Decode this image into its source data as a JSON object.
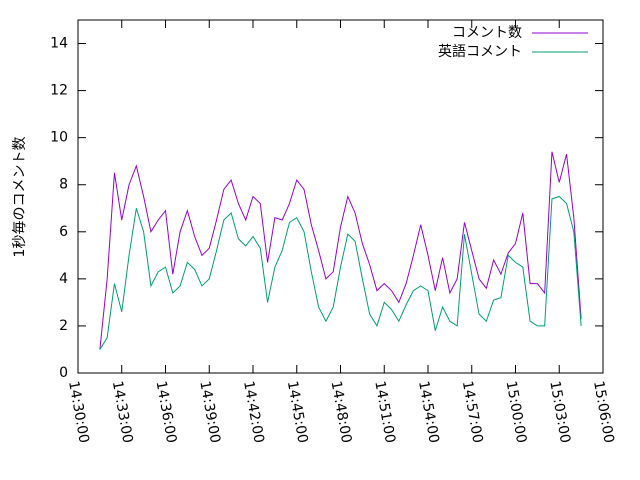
{
  "chart_data": {
    "type": "line",
    "ylabel": "1秒毎のコメント数",
    "x": [
      "14:31:30",
      "14:32:00",
      "14:32:30",
      "14:33:00",
      "14:33:30",
      "14:34:00",
      "14:34:30",
      "14:35:00",
      "14:35:30",
      "14:36:00",
      "14:36:30",
      "14:37:00",
      "14:37:30",
      "14:38:00",
      "14:38:30",
      "14:39:00",
      "14:39:30",
      "14:40:00",
      "14:40:30",
      "14:41:00",
      "14:41:30",
      "14:42:00",
      "14:42:30",
      "14:43:00",
      "14:43:30",
      "14:44:00",
      "14:44:30",
      "14:45:00",
      "14:45:30",
      "14:46:00",
      "14:46:30",
      "14:47:00",
      "14:47:30",
      "14:48:00",
      "14:48:30",
      "14:49:00",
      "14:49:30",
      "14:50:00",
      "14:50:30",
      "14:51:00",
      "14:51:30",
      "14:52:00",
      "14:52:30",
      "14:53:00",
      "14:53:30",
      "14:54:00",
      "14:54:30",
      "14:55:00",
      "14:55:30",
      "14:56:00",
      "14:56:30",
      "14:57:00",
      "14:57:30",
      "14:58:00",
      "14:58:30",
      "14:59:00",
      "14:59:30",
      "15:00:00",
      "15:00:30",
      "15:01:00",
      "15:01:30",
      "15:02:00",
      "15:02:30",
      "15:03:00",
      "15:03:30",
      "15:04:00",
      "15:04:30"
    ],
    "series": [
      {
        "name": "コメント数",
        "color": "#9400d3",
        "values": [
          1.0,
          4,
          8.5,
          6.5,
          8.0,
          8.8,
          7.5,
          6.0,
          6.5,
          6.9,
          4.2,
          6.0,
          6.9,
          5.8,
          5.0,
          5.3,
          6.5,
          7.8,
          8.2,
          7.2,
          6.5,
          7.5,
          7.2,
          4.7,
          6.6,
          6.5,
          7.2,
          8.2,
          7.8,
          6.3,
          5.2,
          4.0,
          4.3,
          6.2,
          7.5,
          6.8,
          5.5,
          4.6,
          3.5,
          3.8,
          3.5,
          3.0,
          3.8,
          5.0,
          6.3,
          5.0,
          3.5,
          4.9,
          3.4,
          4.0,
          6.4,
          5.2,
          4.0,
          3.6,
          4.8,
          4.2,
          5.1,
          5.5,
          6.8,
          3.8,
          3.8,
          3.4,
          9.4,
          8.1,
          9.3,
          6.6,
          2.3
        ]
      },
      {
        "name": "英語コメント",
        "color": "#009e73",
        "values": [
          1.0,
          1.5,
          3.8,
          2.6,
          5.0,
          7.0,
          6.0,
          3.7,
          4.3,
          4.5,
          3.4,
          3.7,
          4.7,
          4.4,
          3.7,
          4.0,
          5.2,
          6.5,
          6.8,
          5.7,
          5.4,
          5.8,
          5.3,
          3.0,
          4.5,
          5.2,
          6.4,
          6.6,
          6.0,
          4.3,
          2.8,
          2.2,
          2.8,
          4.5,
          5.9,
          5.6,
          4.0,
          2.5,
          2.0,
          3.0,
          2.7,
          2.2,
          2.9,
          3.5,
          3.7,
          3.5,
          1.8,
          2.8,
          2.2,
          2.0,
          5.9,
          4.2,
          2.5,
          2.2,
          3.1,
          3.2,
          5.0,
          4.7,
          4.5,
          2.2,
          2.0,
          2.0,
          7.4,
          7.5,
          7.2,
          6.0,
          2.0
        ]
      }
    ],
    "xlim": [
      "14:30:00",
      "15:06:00"
    ],
    "xticks": [
      "14:30:00",
      "14:33:00",
      "14:36:00",
      "14:39:00",
      "14:42:00",
      "14:45:00",
      "14:48:00",
      "14:51:00",
      "14:54:00",
      "14:57:00",
      "15:00:00",
      "15:03:00",
      "15:06:00"
    ],
    "ylim": [
      0,
      15
    ],
    "yticks": [
      0,
      2,
      4,
      6,
      8,
      10,
      12,
      14
    ],
    "legend": "top-right"
  }
}
